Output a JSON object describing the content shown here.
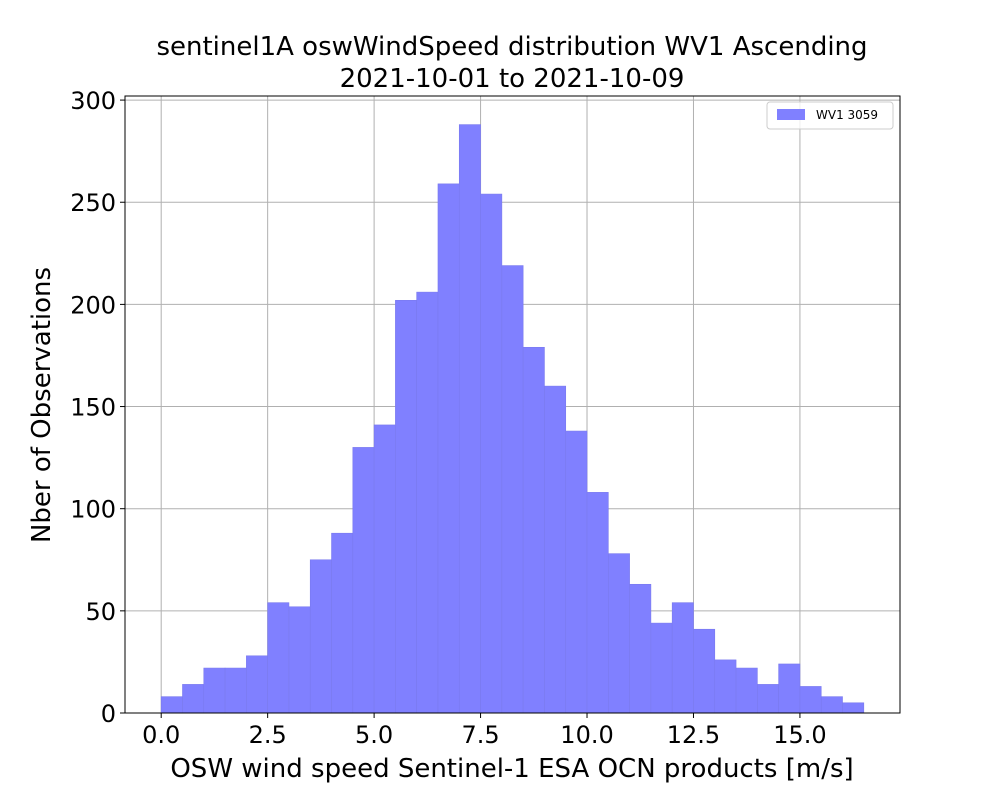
{
  "chart_data": {
    "type": "bar",
    "title": "sentinel1A oswWindSpeed distribution WV1 Ascending",
    "subtitle": "2021-10-01 to 2021-10-09",
    "xlabel": "OSW wind speed Sentinel-1 ESA OCN products [m/s]",
    "ylabel": "Nber of Observations",
    "xlim": [
      -0.85,
      17.35
    ],
    "ylim": [
      0,
      302
    ],
    "xticks": [
      0.0,
      2.5,
      5.0,
      7.5,
      10.0,
      12.5,
      15.0
    ],
    "xtick_labels": [
      "0.0",
      "2.5",
      "5.0",
      "7.5",
      "10.0",
      "12.5",
      "15.0"
    ],
    "yticks": [
      0,
      50,
      100,
      150,
      200,
      250,
      300
    ],
    "ytick_labels": [
      "0",
      "50",
      "100",
      "150",
      "200",
      "250",
      "300"
    ],
    "grid": true,
    "bin_width": 0.5,
    "bin_edges": [
      0.0,
      0.5,
      1.0,
      1.5,
      2.0,
      2.5,
      3.0,
      3.5,
      4.0,
      4.5,
      5.0,
      5.5,
      6.0,
      6.5,
      7.0,
      7.5,
      8.0,
      8.5,
      9.0,
      9.5,
      10.0,
      10.5,
      11.0,
      11.5,
      12.0,
      12.5,
      13.0,
      13.5,
      14.0,
      14.5,
      15.0,
      15.5,
      16.0,
      16.5
    ],
    "series": [
      {
        "name": "WV1 3059",
        "color": "#8080ff",
        "values": [
          8,
          14,
          22,
          22,
          28,
          54,
          52,
          75,
          88,
          130,
          141,
          202,
          206,
          259,
          288,
          254,
          219,
          179,
          160,
          138,
          108,
          78,
          63,
          44,
          54,
          41,
          26,
          22,
          14,
          24,
          13,
          8,
          5
        ]
      }
    ],
    "legend": {
      "position": "top-right",
      "label": "WV1 3059"
    }
  }
}
